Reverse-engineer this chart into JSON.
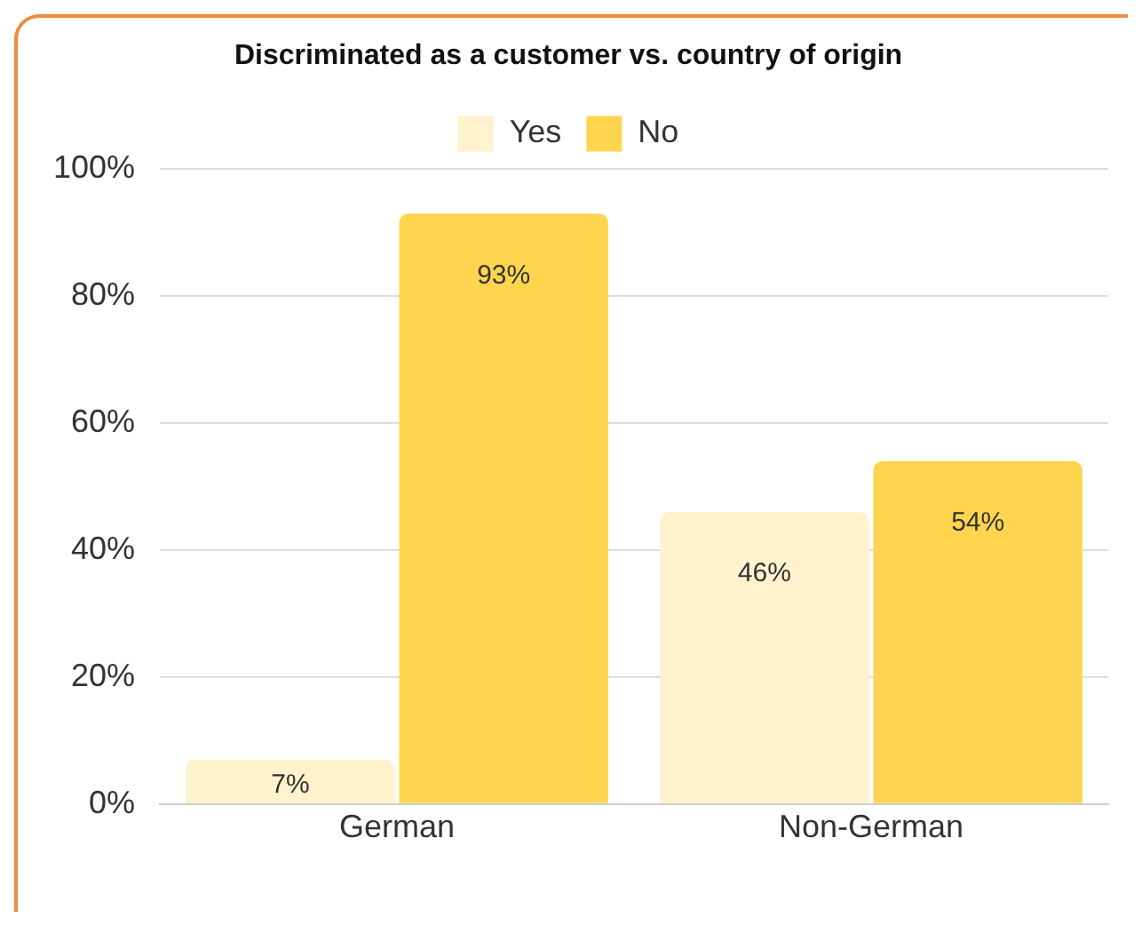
{
  "chart_data": {
    "type": "bar",
    "title": "Discriminated as a customer vs. country of origin",
    "categories": [
      "German",
      "Non-German"
    ],
    "series": [
      {
        "name": "Yes",
        "color": "#fff2cc",
        "values": [
          7,
          46
        ],
        "value_labels": [
          "7%",
          "46%"
        ]
      },
      {
        "name": "No",
        "color": "#ffd54f",
        "values": [
          93,
          54
        ],
        "value_labels": [
          "93%",
          "54%"
        ]
      }
    ],
    "ylim": [
      0,
      100
    ],
    "yticks": [
      {
        "value": 0,
        "label": "0%"
      },
      {
        "value": 20,
        "label": "20%"
      },
      {
        "value": 40,
        "label": "40%"
      },
      {
        "value": 60,
        "label": "60%"
      },
      {
        "value": 80,
        "label": "80%"
      },
      {
        "value": 100,
        "label": "100%"
      }
    ],
    "grid": "y",
    "legend": "top"
  }
}
